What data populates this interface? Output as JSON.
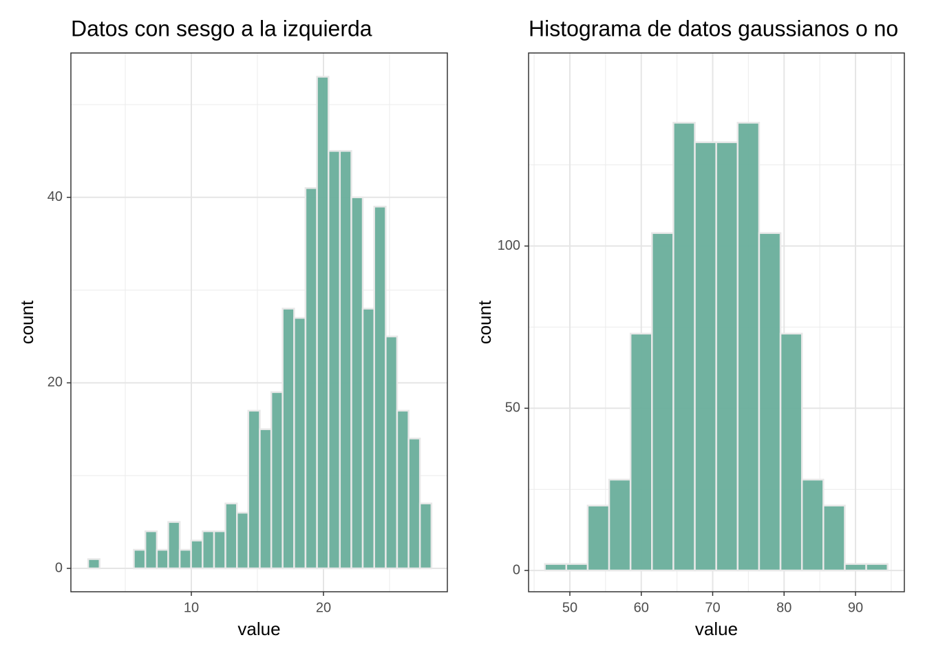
{
  "chart_data": [
    {
      "type": "histogram",
      "title": "Datos con sesgo a la izquierda",
      "x_label": "value",
      "y_label": "count",
      "bins": [
        2.19,
        3.06,
        3.92,
        4.79,
        5.65,
        6.52,
        7.39,
        8.25,
        9.12,
        9.98,
        10.85,
        11.72,
        12.58,
        13.45,
        14.31,
        15.18,
        16.05,
        16.91,
        17.78,
        18.64,
        19.51,
        20.38,
        21.24,
        22.11,
        22.97,
        23.84,
        24.71,
        25.57,
        26.44,
        27.3,
        28.17
      ],
      "values": [
        1,
        0,
        0,
        0,
        2,
        4,
        2,
        5,
        2,
        3,
        4,
        4,
        7,
        6,
        17,
        15,
        19,
        28,
        27,
        41,
        53,
        45,
        45,
        40,
        28,
        39,
        25,
        17,
        14,
        7
      ],
      "color": "#69ae9b",
      "xlim": [
        0.885,
        29.375
      ],
      "ylim": [
        -2.52,
        55.56
      ],
      "xticks": [
        10,
        20
      ],
      "yticks": [
        0,
        20,
        40
      ],
      "grid": true
    },
    {
      "type": "histogram",
      "title": "Histograma de datos gaussianos o no",
      "x_label": "value",
      "y_label": "count",
      "bins": [
        46.5,
        49.5,
        52.5,
        55.5,
        58.5,
        61.5,
        64.5,
        67.5,
        70.5,
        73.5,
        76.5,
        79.5,
        82.5,
        85.5,
        88.5,
        91.5,
        94.5
      ],
      "values": [
        2,
        2,
        20,
        28,
        73,
        104,
        138,
        132,
        132,
        138,
        104,
        73,
        28,
        20,
        2,
        2
      ],
      "color": "#69ae9b",
      "xlim": [
        44.22,
        96.84
      ],
      "ylim": [
        -6.56,
        159.5
      ],
      "xticks": [
        50,
        60,
        70,
        80,
        90
      ],
      "yticks": [
        0,
        50,
        100
      ],
      "grid": true
    }
  ]
}
